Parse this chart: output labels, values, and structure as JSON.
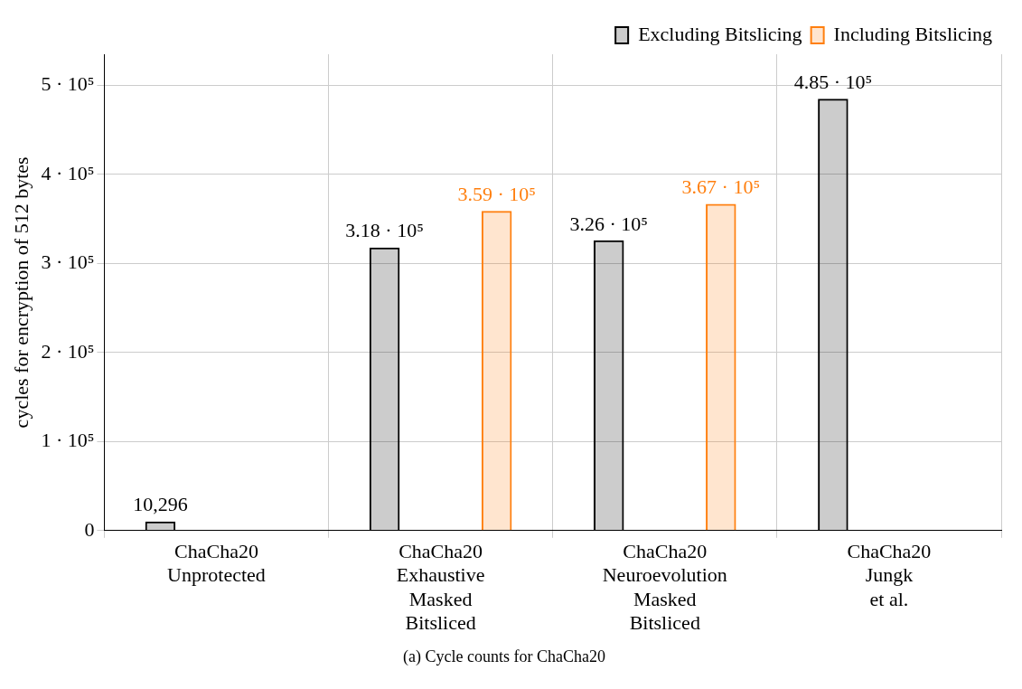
{
  "chart_data": {
    "type": "bar",
    "title": "(a) Cycle counts for ChaCha20",
    "ylabel": "cycles for encryption of 512 bytes",
    "categories": [
      "ChaCha20\nUnprotected",
      "ChaCha20\nExhaustive\nMasked\nBitsliced",
      "ChaCha20\nNeuroevolution\nMasked\nBitsliced",
      "ChaCha20\nJungk\net al."
    ],
    "series": [
      {
        "name": "Excluding Bitslicing",
        "color": "#000000",
        "values": [
          10296,
          318000,
          326000,
          485000
        ],
        "value_labels": [
          "10,296",
          "3.18 · 10⁵",
          "3.26 · 10⁵",
          "4.85 · 10⁵"
        ]
      },
      {
        "name": "Including Bitslicing",
        "color": "#ff7f0e",
        "values": [
          null,
          359000,
          367000,
          null
        ],
        "value_labels": [
          null,
          "3.59 · 10⁵",
          "3.67 · 10⁵",
          null
        ]
      }
    ],
    "ylim": [
      0,
      535000
    ],
    "yticks": [
      0,
      {
        "value": 100000,
        "label": "1 · 10⁵"
      },
      {
        "value": 200000,
        "label": "2 · 10⁵"
      },
      {
        "value": 300000,
        "label": "3 · 10⁵"
      },
      {
        "value": 400000,
        "label": "4 · 10⁵"
      },
      {
        "value": 500000,
        "label": "5 · 10⁵"
      }
    ],
    "grid": true,
    "legend": "top right"
  }
}
